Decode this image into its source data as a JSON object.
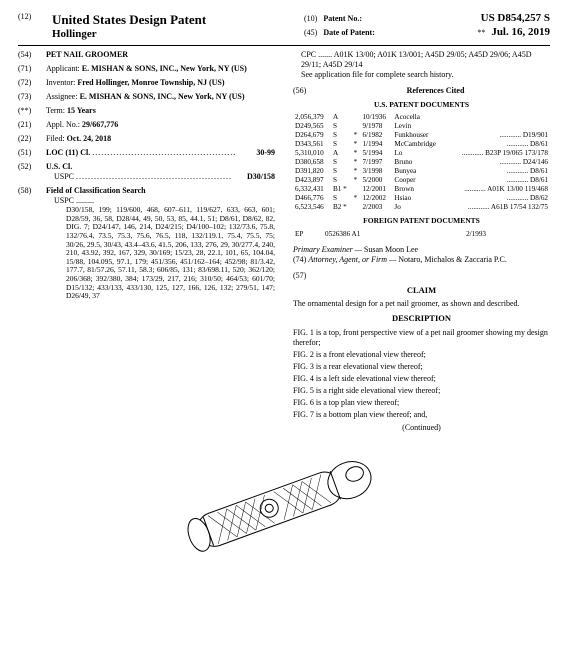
{
  "header": {
    "left_code": "(12)",
    "title": "United States Design Patent",
    "inventor_line": "Hollinger",
    "right1_code": "(10)",
    "right1_label": "Patent No.:",
    "right1_val": "US D854,257 S",
    "right2_code": "(45)",
    "right2_label": "Date of Patent:",
    "right2_star": "**",
    "right2_val": "Jul. 16, 2019"
  },
  "left": {
    "title_code": "(54)",
    "title_label": "PET NAIL GROOMER",
    "applicant_code": "(71)",
    "applicant_label": "Applicant:",
    "applicant_val": "E. MISHAN & SONS, INC., New York, NY (US)",
    "inventor_code": "(72)",
    "inventor_label": "Inventor:",
    "inventor_val": "Fred Hollinger, Monroe Township, NJ (US)",
    "assignee_code": "(73)",
    "assignee_label": "Assignee:",
    "assignee_val": "E. MISHAN & SONS, INC., New York, NY (US)",
    "term_code": "(**)",
    "term_label": "Term:",
    "term_val": "15 Years",
    "appl_code": "(21)",
    "appl_label": "Appl. No.:",
    "appl_val": "29/667,776",
    "filed_code": "(22)",
    "filed_label": "Filed:",
    "filed_val": "Oct. 24, 2018",
    "loc_code": "(51)",
    "loc_label": "LOC (11) Cl.",
    "loc_val": "30-99",
    "uscl_code": "(52)",
    "uscl_label": "U.S. Cl.",
    "uscl_sub_label": "USPC",
    "uscl_sub_val": "D30/158",
    "field_code": "(58)",
    "field_label": "Field of Classification Search",
    "field_sub_label": "USPC",
    "field_sub_val": "D30/158, 199; 119/600, 468, 607–611, 119/627, 633, 663, 601; D28/59, 36, 58, D28/44, 49, 50, 53, 85, 44.1, 51; D8/61, D8/62, 82, DIG. 7; D24/147, 146, 214, D24/215; D4/100–102; 132/73.6, 75.8, 132/76.4, 73.5, 75.3, 75.6, 76.5, 118, 132/119.1, 75.4, 75.5, 75; 30/26, 29.5, 30/43, 43.4–43.6, 41.5, 206, 133, 276, 29, 30/277.4, 240, 210, 43.92, 392, 167, 329, 30/169; 15/23, 28, 22.1, 101, 65, 104.04, 15/88, 104.095, 97.1, 179; 451/356, 451/162–164; 452/98; 81/3.42, 177.7, 81/57.26, 57.11, 58.3; 606/85, 131; 83/698.11, 520; 362/120; 206/368; 392/380, 384; 173/29, 217, 216; 310/50; 464/53; 601/70; D15/132; 433/133, 433/130, 125, 127, 166, 126, 132; 279/51, 147; D26/49, 37"
  },
  "right": {
    "cpc_label": "CPC",
    "cpc_val": "A01K 13/00; A01K 13/001; A45D 29/05; A45D 29/06; A45D 29/11; A45D 29/14",
    "see_app": "See application file for complete search history.",
    "refs_code": "(56)",
    "refs_label": "References Cited",
    "us_docs_head": "U.S. PATENT DOCUMENTS",
    "us_docs": [
      [
        "2,056,379",
        "A",
        "",
        "10/1936",
        "Acocella",
        ""
      ],
      [
        "D249,565",
        "S",
        "",
        "9/1978",
        "Levin",
        ""
      ],
      [
        "D264,679",
        "S",
        "*",
        "6/1982",
        "Funkhouser",
        "D19/901"
      ],
      [
        "D343,561",
        "S",
        "*",
        "1/1994",
        "McCambridge",
        "D8/61"
      ],
      [
        "5,310,010",
        "A",
        "*",
        "5/1994",
        "Lo",
        "B23P 19/065 173/178"
      ],
      [
        "D380,658",
        "S",
        "*",
        "7/1997",
        "Bruno",
        "D24/146"
      ],
      [
        "D391,820",
        "S",
        "*",
        "3/1998",
        "Bunyea",
        "D8/61"
      ],
      [
        "D423,897",
        "S",
        "*",
        "5/2000",
        "Cooper",
        "D8/61"
      ],
      [
        "6,332,431",
        "B1 *",
        "",
        "12/2001",
        "Brown",
        "A01K 13/00 119/468"
      ],
      [
        "D466,776",
        "S",
        "*",
        "12/2002",
        "Hsiao",
        "D8/62"
      ],
      [
        "6,523,546",
        "B2 *",
        "",
        "2/2003",
        "Jo",
        "A61B 17/54 132/75"
      ]
    ],
    "foreign_head": "FOREIGN PATENT DOCUMENTS",
    "foreign": [
      [
        "EP",
        "0526386 A1",
        "2/1993"
      ]
    ],
    "examiner_label": "Primary Examiner —",
    "examiner_val": "Susan Moon Lee",
    "attorney_code": "(74)",
    "attorney_label": "Attorney, Agent, or Firm —",
    "attorney_val": "Notaro, Michalos & Zaccaria P.C.",
    "claim_code": "(57)",
    "claim_head": "CLAIM",
    "claim_text": "The ornamental design for a pet nail groomer, as shown and described.",
    "desc_head": "DESCRIPTION",
    "desc_lines": [
      "FIG. 1 is a top, front perspective view of a pet nail groomer showing my design therefor;",
      "FIG. 2 is a front elevational view thereof;",
      "FIG. 3 is a rear elevational view thereof;",
      "FIG. 4 is a left side elevational view thereof;",
      "FIG. 5 is a right side elevational view thereof;",
      "FIG. 6 is a top plan view thereof;",
      "FIG. 7 is a bottom plan view thereof; and,"
    ],
    "continued": "(Continued)"
  },
  "drawing": {
    "stroke": "#000000",
    "fill": "#ffffff"
  }
}
